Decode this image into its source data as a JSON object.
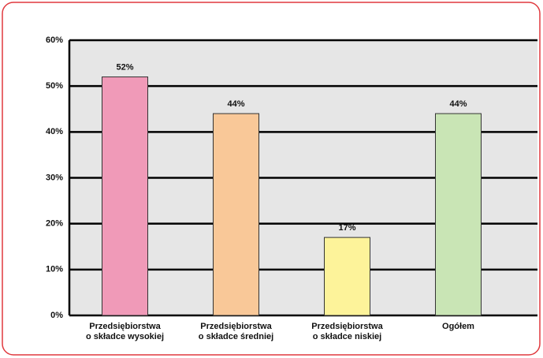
{
  "chart_data": {
    "type": "bar",
    "categories": [
      "Przedsiębiorstwa\no składce wysokiej",
      "Przedsiębiorstwa\no składce średniej",
      "Przedsiębiorstwa\no składce niskiej",
      "Ogółem"
    ],
    "values": [
      52,
      44,
      17,
      44
    ],
    "value_labels": [
      "52%",
      "44%",
      "17%",
      "44%"
    ],
    "colors": [
      "#f09ab8",
      "#f9c898",
      "#fdf39a",
      "#c9e5b5"
    ],
    "ylim": [
      0,
      60
    ],
    "yticks": [
      {
        "value": 0,
        "label": "0%"
      },
      {
        "value": 10,
        "label": "10%"
      },
      {
        "value": 20,
        "label": "20%"
      },
      {
        "value": 30,
        "label": "30%"
      },
      {
        "value": 40,
        "label": "40%"
      },
      {
        "value": 50,
        "label": "50%"
      },
      {
        "value": 60,
        "label": "60%"
      }
    ],
    "grid": true
  }
}
